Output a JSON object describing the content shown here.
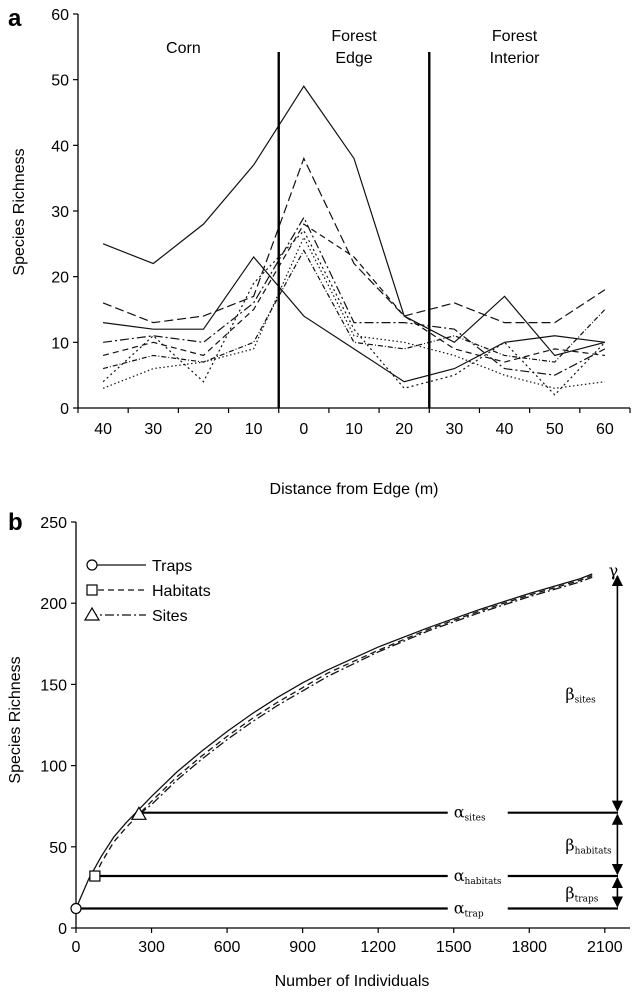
{
  "chart_data": [
    {
      "panel": "a",
      "type": "line",
      "ylabel": "Species Richness",
      "xlabel": "Distance from Edge (m)",
      "categories": [
        "40",
        "30",
        "20",
        "10",
        "0",
        "10",
        "20",
        "30",
        "40",
        "50",
        "60"
      ],
      "ylim": [
        0,
        60
      ],
      "yticks": [
        0,
        10,
        20,
        30,
        40,
        50,
        60
      ],
      "region_labels": [
        {
          "lines": [
            "Corn"
          ],
          "id": "corn"
        },
        {
          "lines": [
            "Forest",
            "Edge"
          ],
          "id": "edge"
        },
        {
          "lines": [
            "Forest",
            "Interior"
          ],
          "id": "interior"
        }
      ],
      "boundaries_at_index": [
        3.5,
        6.5
      ],
      "series": [
        {
          "dash": "solid",
          "values": [
            25,
            22,
            28,
            37,
            49,
            38,
            14,
            10,
            17,
            8,
            10
          ]
        },
        {
          "dash": "solid",
          "values": [
            13,
            12,
            12,
            23,
            14,
            9,
            4,
            6,
            10,
            11,
            10
          ]
        },
        {
          "dash": "longdash",
          "values": [
            16,
            13,
            14,
            17,
            38,
            22,
            14,
            16,
            13,
            13,
            18
          ]
        },
        {
          "dash": "dashdot",
          "values": [
            10,
            11,
            10,
            16,
            29,
            13,
            13,
            12,
            6,
            5,
            9
          ]
        },
        {
          "dash": "dash",
          "values": [
            8,
            10,
            8,
            15,
            28,
            23,
            14,
            9,
            7,
            9,
            8
          ]
        },
        {
          "dash": "dot",
          "values": [
            4,
            11,
            4,
            19,
            27,
            12,
            3,
            5,
            10,
            2,
            10
          ]
        },
        {
          "dash": "shortdot",
          "values": [
            3,
            6,
            7,
            9,
            26,
            11,
            10,
            8,
            5,
            3,
            4
          ]
        },
        {
          "dash": "dashdot2",
          "values": [
            6,
            8,
            7,
            10,
            24,
            10,
            9,
            11,
            8,
            7,
            15
          ]
        }
      ]
    },
    {
      "panel": "b",
      "type": "line",
      "ylabel": "Species Richness",
      "xlabel": "Number of Individuals",
      "xlim": [
        0,
        2200
      ],
      "xticks": [
        0,
        300,
        600,
        900,
        1200,
        1500,
        1800,
        2100
      ],
      "ylim": [
        0,
        250
      ],
      "yticks": [
        0,
        50,
        100,
        150,
        200,
        250
      ],
      "legend_placement": "top-left",
      "series": [
        {
          "name": "Traps",
          "dash": "solid",
          "marker": "circle",
          "x": [
            0,
            50,
            100,
            150,
            200,
            250,
            300,
            400,
            500,
            600,
            700,
            800,
            900,
            1000,
            1200,
            1400,
            1600,
            1800,
            2000,
            2050
          ],
          "y": [
            12,
            30,
            44,
            56,
            65,
            73,
            81,
            96,
            109,
            121,
            132,
            142,
            151,
            159,
            173,
            185,
            196,
            206,
            215,
            218
          ]
        },
        {
          "name": "Habitats",
          "dash": "dash",
          "marker": "square",
          "x": [
            75,
            100,
            150,
            200,
            250,
            300,
            400,
            500,
            600,
            700,
            800,
            900,
            1000,
            1200,
            1400,
            1600,
            1800,
            2000,
            2050
          ],
          "y": [
            32,
            40,
            53,
            62,
            70,
            78,
            93,
            106,
            118,
            129,
            139,
            148,
            157,
            171,
            184,
            195,
            205,
            214,
            217
          ]
        },
        {
          "name": "Sites",
          "dash": "dashdot",
          "marker": "triangle",
          "x": [
            250,
            300,
            400,
            500,
            600,
            700,
            800,
            900,
            1000,
            1200,
            1400,
            1600,
            1800,
            2000,
            2050
          ],
          "y": [
            70,
            76,
            91,
            104,
            116,
            127,
            137,
            146,
            155,
            170,
            183,
            194,
            204,
            213,
            216
          ]
        }
      ],
      "levels": [
        {
          "id": "alpha_trap",
          "y": 12,
          "symbol": "α",
          "sub": "trap"
        },
        {
          "id": "alpha_habitats",
          "y": 32,
          "symbol": "α",
          "sub": "habitats"
        },
        {
          "id": "alpha_sites",
          "y": 71,
          "symbol": "α",
          "sub": "sites"
        }
      ],
      "betas": [
        {
          "id": "beta_traps",
          "from": 12,
          "to": 32,
          "symbol": "β",
          "sub": "traps"
        },
        {
          "id": "beta_habitats",
          "from": 32,
          "to": 71,
          "symbol": "β",
          "sub": "habitats"
        },
        {
          "id": "beta_sites",
          "from": 71,
          "to": 218,
          "symbol": "β",
          "sub": "sites"
        }
      ],
      "gamma": {
        "symbol": "γ",
        "y": 218
      }
    }
  ]
}
